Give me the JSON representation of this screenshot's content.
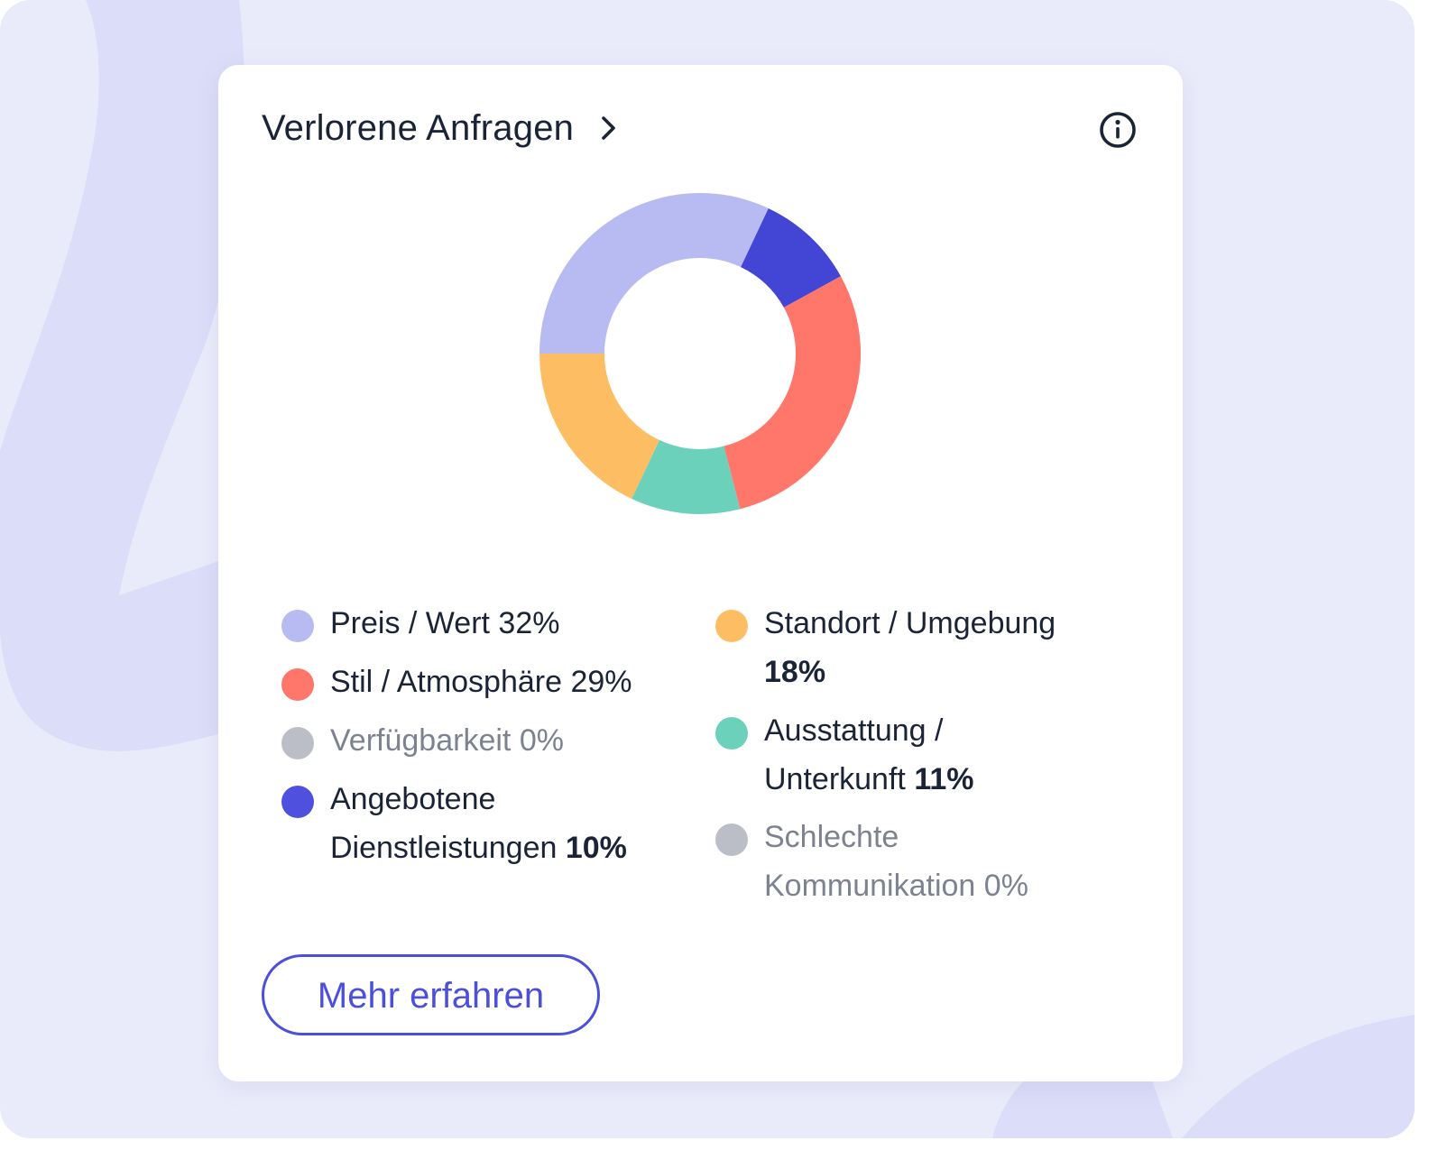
{
  "card": {
    "title": "Verlorene Anfragen",
    "title_icon": "chevron-right-icon",
    "info_icon": "info-icon"
  },
  "colors": {
    "preis": "#b8bbf2",
    "stil": "#ff776a",
    "verfuegbarkeit": "#bbbec6",
    "angebotene": "#4f51de",
    "standort": "#fdbd62",
    "ausstattung": "#6bd1bb",
    "kommunikation": "#bbbec6",
    "accent": "#4c4fd9",
    "text_dark": "#1b2336",
    "text_muted": "#7d8290"
  },
  "legend": {
    "preis": {
      "label": "Preis / Wert",
      "pct": "32%"
    },
    "stil": {
      "label": "Stil / Atmosphäre",
      "pct": "29%"
    },
    "verfuegbarkeit": {
      "label": "Verfügbarkeit",
      "pct": "0%"
    },
    "angebotene": {
      "label": "Angebotene Dienstleistungen",
      "pct": "10%"
    },
    "standort": {
      "label": "Standort / Umgebung",
      "pct": "18%"
    },
    "ausstattung": {
      "label": "Ausstattung / Unterkunft",
      "pct": "11%"
    },
    "kommunikation": {
      "label": "Schlechte Kommunikation",
      "pct": "0%"
    }
  },
  "chart_data": {
    "type": "pie",
    "variant": "donut",
    "title": "Verlorene Anfragen",
    "categories": [
      "Preis / Wert",
      "Angebotene Dienstleistungen",
      "Stil / Atmosphäre",
      "Ausstattung / Unterkunft",
      "Standort / Umgebung",
      "Verfügbarkeit",
      "Schlechte Kommunikation"
    ],
    "values": [
      32,
      10,
      29,
      11,
      18,
      0,
      0
    ],
    "unit": "%",
    "colors": [
      "#b8bbf2",
      "#4345d4",
      "#ff776a",
      "#6bd1bb",
      "#fdbd62",
      "#bbbec6",
      "#bbbec6"
    ],
    "legend_placement": "bottom"
  },
  "actions": {
    "more_label": "Mehr erfahren"
  }
}
